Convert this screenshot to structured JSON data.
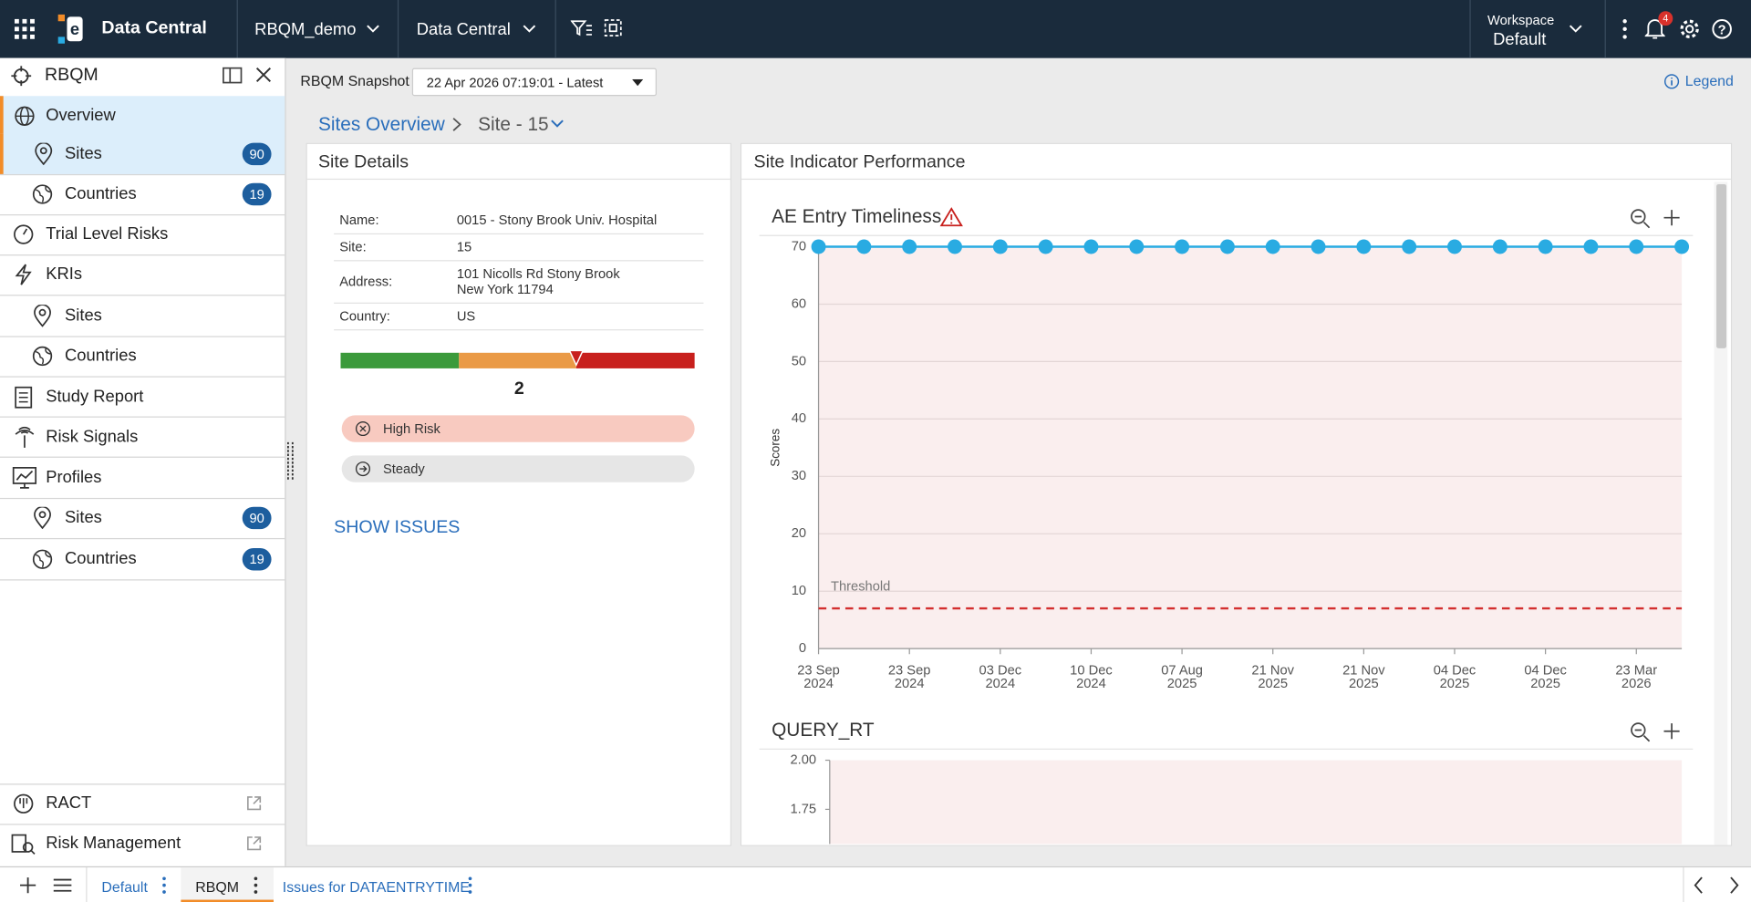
{
  "topbar": {
    "app": "Data Central",
    "study": "RBQM_demo",
    "module": "Data Central",
    "workspace_label": "Workspace",
    "workspace": "Default",
    "notifications": 4
  },
  "sidebar": {
    "title": "RBQM",
    "items": [
      {
        "label": "Overview"
      },
      {
        "label": "Sites",
        "badge": 90
      },
      {
        "label": "Countries",
        "badge": 19
      },
      {
        "label": "Trial Level Risks"
      },
      {
        "label": "KRIs"
      },
      {
        "label": "Sites"
      },
      {
        "label": "Countries"
      },
      {
        "label": "Study Report"
      },
      {
        "label": "Risk Signals"
      },
      {
        "label": "Profiles"
      },
      {
        "label": "Sites",
        "badge": 90
      },
      {
        "label": "Countries",
        "badge": 19
      }
    ],
    "footer": [
      "RACT",
      "Risk Management"
    ]
  },
  "toolbar": {
    "snapshot_label": "RBQM Snapshot",
    "snapshot": "22 Apr 2026 07:19:01 - Latest",
    "legend": "Legend"
  },
  "breadcrumb": [
    "Sites Overview",
    "Site - 15"
  ],
  "site_details": {
    "title": "Site Details",
    "rows": [
      [
        "Name:",
        "0015 - Stony Brook Univ. Hospital"
      ],
      [
        "Site:",
        "15"
      ],
      [
        "Address:",
        "101 Nicolls Rd Stony Brook",
        "New York 11794"
      ],
      [
        "Country:",
        "US"
      ]
    ],
    "score": 2,
    "status": [
      "High Risk",
      "Steady"
    ],
    "show_issues": "SHOW ISSUES"
  },
  "panel_title": "Site Indicator Performance",
  "chart_data": [
    {
      "type": "line",
      "title": "AE Entry Timeliness",
      "y_label": "Scores",
      "categories": [
        "23 Sep 2024",
        null,
        "23 Sep 2024",
        null,
        "03 Dec 2024",
        null,
        "10 Dec 2024",
        null,
        "07 Aug 2025",
        null,
        "21 Nov 2025",
        null,
        "21 Nov 2025",
        null,
        "04 Dec 2025",
        null,
        "04 Dec 2025",
        null,
        "23 Mar 2026",
        null
      ],
      "series": [
        {
          "color": "#29abe2",
          "values": [
            70,
            70,
            70,
            70,
            70,
            70,
            70,
            70,
            70,
            70,
            70,
            70,
            70,
            70,
            70,
            70,
            70,
            70,
            70,
            70
          ]
        }
      ],
      "threshold": {
        "label": "Threshold",
        "value": 7,
        "color": "#d32f2f"
      },
      "ylim": [
        0,
        70
      ],
      "yticks": [
        0,
        10,
        20,
        30,
        40,
        50,
        60,
        70
      ],
      "grid": true
    },
    {
      "type": "line",
      "title": "QUERY_RT",
      "ylim": [
        1.5,
        2
      ],
      "yticks": [
        {
          "value": 2,
          "label": "2.00"
        },
        {
          "value": 1.75,
          "label": "1.75"
        }
      ],
      "grid": false
    }
  ],
  "tabs": [
    "Default",
    "RBQM",
    "Issues for DATAENTRYTIME"
  ]
}
